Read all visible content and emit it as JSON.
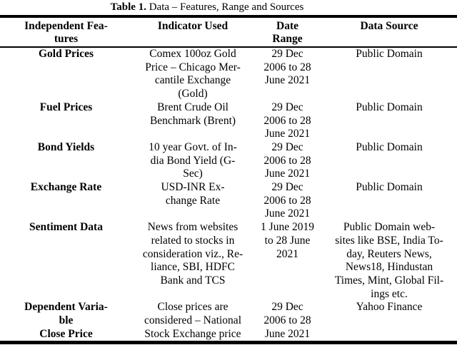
{
  "colors": {
    "background": "#ffffff",
    "text": "#000000",
    "rule": "#000000"
  },
  "title": {
    "label": "Table 1.",
    "caption": "Data – Features, Range and Sources"
  },
  "table": {
    "headers": [
      "Independent Fea-\ntures",
      "Indicator Used",
      "Date\nRange",
      "Data Source"
    ],
    "rows": [
      [
        "Gold Prices",
        "Comex 100oz Gold\nPrice – Chicago Mer-\ncantile Exchange\n(Gold)",
        "29 Dec\n2006 to 28\nJune 2021",
        "Public Domain"
      ],
      [
        "Fuel Prices",
        "Brent Crude Oil\nBenchmark (Brent)",
        "29 Dec\n2006 to 28\nJune 2021",
        "Public Domain"
      ],
      [
        "Bond Yields",
        "10 year Govt. of In-\ndia Bond Yield (G-\nSec)",
        "29 Dec\n2006 to 28\nJune 2021",
        "Public Domain"
      ],
      [
        "Exchange Rate",
        "USD-INR Ex-\nchange Rate",
        "29 Dec\n2006 to 28\nJune 2021",
        "Public Domain"
      ],
      [
        "Sentiment Data",
        "News from websites\nrelated to stocks in\nconsideration viz., Re-\nliance, SBI, HDFC\nBank and TCS",
        "1 June 2019\nto 28 June\n2021",
        "Public Domain web-\nsites like BSE, India To-\nday, Reuters News,\nNews18, Hindustan\nTimes, Mint, Global Fil-\nings etc."
      ],
      [
        "Dependent Varia-\nble\nClose Price",
        "Close prices are\nconsidered – National\nStock Exchange price",
        "29 Dec\n2006 to 28\nJune 2021",
        "Yahoo Finance"
      ]
    ]
  }
}
